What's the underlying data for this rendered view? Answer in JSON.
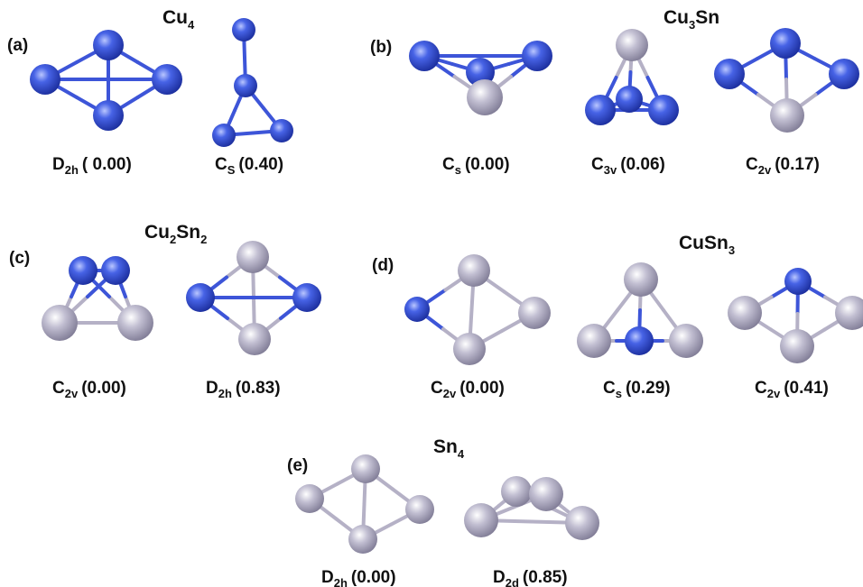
{
  "panels": [
    {
      "label": "(a)",
      "title": [
        {
          "text": "Cu"
        },
        {
          "sub": "4"
        }
      ],
      "structures": [
        {
          "symmetry": "D",
          "sub": "2h",
          "energy": "( 0.00)"
        },
        {
          "symmetry": "C",
          "sub": "S",
          "energy": "(0.40)"
        }
      ]
    },
    {
      "label": "(b)",
      "title": [
        {
          "text": "Cu"
        },
        {
          "sub": "3"
        },
        {
          "text": "Sn"
        }
      ],
      "structures": [
        {
          "symmetry": "C",
          "sub": "s",
          "energy": "(0.00)"
        },
        {
          "symmetry": "C",
          "sub": "3v",
          "energy": "(0.06)"
        },
        {
          "symmetry": "C",
          "sub": "2v",
          "energy": "(0.17)"
        }
      ]
    },
    {
      "label": "(c)",
      "title": [
        {
          "text": "Cu"
        },
        {
          "sub": "2"
        },
        {
          "text": "Sn"
        },
        {
          "sub": "2"
        }
      ],
      "structures": [
        {
          "symmetry": "C",
          "sub": "2v",
          "energy": "(0.00)"
        },
        {
          "symmetry": "D",
          "sub": "2h",
          "energy": "(0.83)"
        }
      ]
    },
    {
      "label": "(d)",
      "title": [
        {
          "text": "CuSn"
        },
        {
          "sub": "3"
        }
      ],
      "structures": [
        {
          "symmetry": "C",
          "sub": "2v",
          "energy": "(0.00)"
        },
        {
          "symmetry": "C",
          "sub": "s",
          "energy": "(0.29)"
        },
        {
          "symmetry": "C",
          "sub": "2v",
          "energy": "(0.41)"
        }
      ]
    },
    {
      "label": "(e)",
      "title": [
        {
          "text": "Sn"
        },
        {
          "sub": "4"
        }
      ],
      "structures": [
        {
          "symmetry": "D",
          "sub": "2h",
          "energy": "(0.00)"
        },
        {
          "symmetry": "D",
          "sub": "2d",
          "energy": "(0.85)"
        }
      ]
    }
  ]
}
